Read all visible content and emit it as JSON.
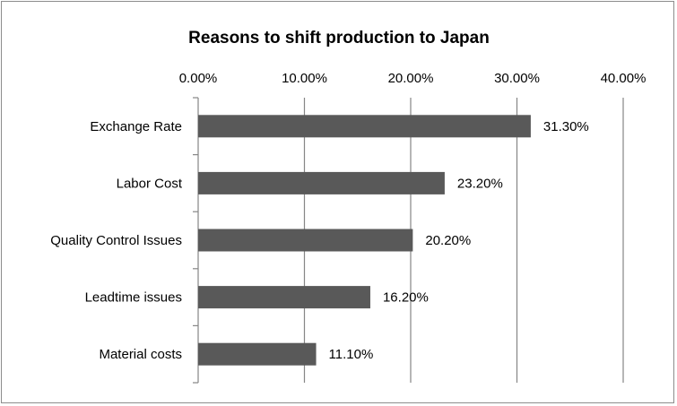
{
  "chart_data": {
    "type": "bar",
    "orientation": "horizontal",
    "title": "Reasons to shift production to Japan",
    "categories": [
      "Exchange Rate",
      "Labor Cost",
      "Quality Control Issues",
      "Leadtime issues",
      "Material costs"
    ],
    "values": [
      31.3,
      23.2,
      20.2,
      16.2,
      11.1
    ],
    "data_labels": [
      "31.30%",
      "23.20%",
      "20.20%",
      "16.20%",
      "11.10%"
    ],
    "xlim": [
      0,
      40
    ],
    "x_ticks": [
      0,
      10,
      20,
      30,
      40
    ],
    "x_tick_labels": [
      "0.00%",
      "10.00%",
      "20.00%",
      "30.00%",
      "40.00%"
    ],
    "x_axis_position": "top",
    "grid": "vertical",
    "legend": "none",
    "bar_color": "#595959",
    "grid_color": "#868686"
  }
}
